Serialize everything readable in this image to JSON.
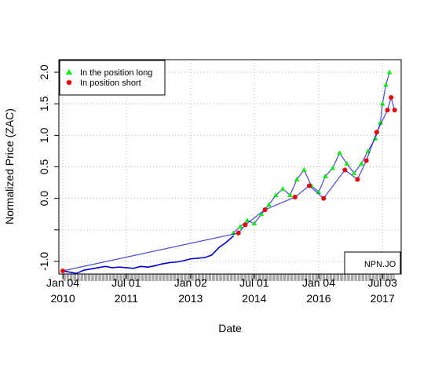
{
  "chart_data": {
    "type": "line",
    "title": "",
    "xlabel": "Date",
    "ylabel": "Normalized Price (ZAC)",
    "grid": true,
    "legend_position": "top-left",
    "xlim": [
      "2009-12-01",
      "2017-12-10"
    ],
    "ylim": [
      -1.2,
      2.2
    ],
    "y_ticks": [
      {
        "value": -1.0,
        "label": "-1.0"
      },
      {
        "value": -0.5,
        "label": ""
      },
      {
        "value": 0.0,
        "label": "0.0"
      },
      {
        "value": 0.5,
        "label": "0.5"
      },
      {
        "value": 1.0,
        "label": "1.0"
      },
      {
        "value": 1.5,
        "label": "1.5"
      },
      {
        "value": 2.0,
        "label": "2.0"
      }
    ],
    "x_ticks": [
      {
        "date": "2010-01-04",
        "line1": "Jan 04",
        "line2": "2010"
      },
      {
        "date": "2011-07-01",
        "line1": "Jul 01",
        "line2": "2011"
      },
      {
        "date": "2013-01-02",
        "line1": "Jan 02",
        "line2": "2013"
      },
      {
        "date": "2014-07-01",
        "line1": "Jul 01",
        "line2": "2014"
      },
      {
        "date": "2016-01-04",
        "line1": "Jan 04",
        "line2": "2016"
      },
      {
        "date": "2017-07-03",
        "line1": "Jul 03",
        "line2": "2017"
      }
    ],
    "series": [
      {
        "name": "",
        "color": "#0000dd",
        "x": [
          "2010-01-04",
          "2010-03-01",
          "2010-05-01",
          "2010-07-01",
          "2010-09-01",
          "2010-11-01",
          "2011-01-03",
          "2011-03-01",
          "2011-05-02",
          "2011-07-01",
          "2011-09-01",
          "2011-11-01",
          "2012-01-03",
          "2012-03-01",
          "2012-05-02",
          "2012-07-02",
          "2012-09-03",
          "2012-11-01",
          "2013-01-02",
          "2013-03-01",
          "2013-05-02",
          "2013-07-01",
          "2013-09-02",
          "2013-11-01",
          "2014-01-02"
        ],
        "values": [
          -1.15,
          -1.17,
          -1.19,
          -1.14,
          -1.12,
          -1.1,
          -1.08,
          -1.1,
          -1.09,
          -1.1,
          -1.11,
          -1.08,
          -1.09,
          -1.07,
          -1.04,
          -1.02,
          -1.01,
          -0.99,
          -0.96,
          -0.95,
          -0.94,
          -0.9,
          -0.78,
          -0.7,
          -0.6
        ]
      },
      {
        "name": "In the position long",
        "color": "#00ee00",
        "marker": "triangle",
        "x": [
          "2014-01-02",
          "2014-03-03",
          "2014-05-02",
          "2014-07-01",
          "2014-09-01",
          "2014-11-03",
          "2015-01-02",
          "2015-03-02",
          "2015-05-04",
          "2015-07-01",
          "2015-09-01",
          "2015-11-02",
          "2016-01-04",
          "2016-03-01",
          "2016-05-02",
          "2016-07-01",
          "2016-09-01",
          "2016-11-01",
          "2017-01-03",
          "2017-03-01",
          "2017-05-02",
          "2017-06-15",
          "2017-07-03",
          "2017-08-01",
          "2017-09-01"
        ],
        "values": [
          -0.55,
          -0.45,
          -0.35,
          -0.4,
          -0.25,
          -0.1,
          0.05,
          0.15,
          0.05,
          0.3,
          0.45,
          0.2,
          0.1,
          0.35,
          0.48,
          0.72,
          0.55,
          0.4,
          0.55,
          0.75,
          0.95,
          1.2,
          1.5,
          1.8,
          2.0
        ]
      },
      {
        "name": "In position short",
        "color": "#ee0000",
        "marker": "circle",
        "x": [
          "2010-01-04",
          "2014-02-15",
          "2014-04-15",
          "2014-10-01",
          "2015-06-15",
          "2015-10-15",
          "2016-02-15",
          "2016-08-15",
          "2016-12-01",
          "2017-02-15",
          "2017-05-15",
          "2017-08-15",
          "2017-09-15",
          "2017-10-15"
        ],
        "values": [
          -1.15,
          -0.55,
          -0.42,
          -0.18,
          0.02,
          0.2,
          0.0,
          0.45,
          0.3,
          0.6,
          1.05,
          1.4,
          1.6,
          1.4
        ]
      }
    ]
  },
  "legend": {
    "items": [
      {
        "label": "In the position long",
        "marker": "triangle",
        "color": "#00ee00"
      },
      {
        "label": "In position short",
        "marker": "circle",
        "color": "#ee0000"
      }
    ]
  },
  "annotation": {
    "label": "NPN.JO"
  }
}
